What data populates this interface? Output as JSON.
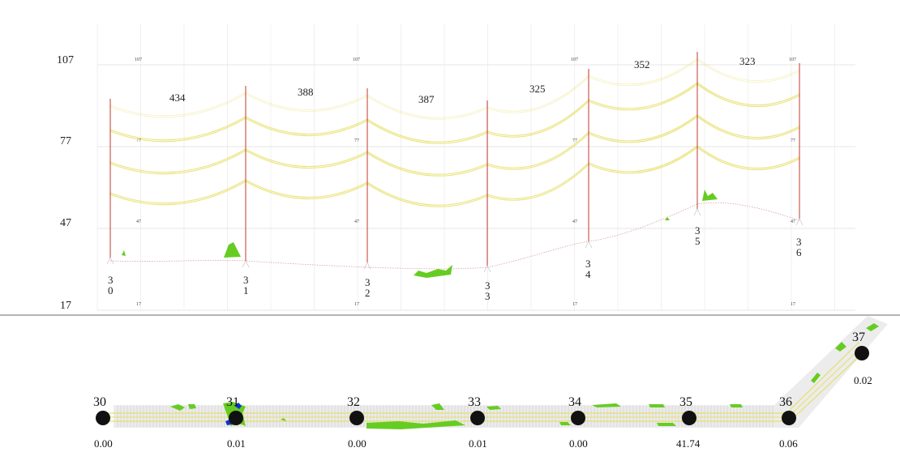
{
  "profile": {
    "y_axis": [
      "107",
      "77",
      "47",
      "17"
    ],
    "span_lengths": [
      "434",
      "388",
      "387",
      "325",
      "352",
      "323"
    ],
    "poles": [
      {
        "digits": [
          "3",
          "0"
        ]
      },
      {
        "digits": [
          "3",
          "1"
        ]
      },
      {
        "digits": [
          "3",
          "2"
        ]
      },
      {
        "digits": [
          "3",
          "3"
        ]
      },
      {
        "digits": [
          "3",
          "4"
        ]
      },
      {
        "digits": [
          "3",
          "5"
        ]
      },
      {
        "digits": [
          "3",
          "6"
        ]
      }
    ]
  },
  "plan": {
    "towers": [
      {
        "id": "30",
        "value": "0.00"
      },
      {
        "id": "31",
        "value": "0.01"
      },
      {
        "id": "32",
        "value": "0.00"
      },
      {
        "id": "33",
        "value": "0.01"
      },
      {
        "id": "34",
        "value": "0.00"
      },
      {
        "id": "35",
        "value": "41.74"
      },
      {
        "id": "36",
        "value": "0.06"
      },
      {
        "id": "37",
        "value": "0.02"
      }
    ]
  },
  "colors": {
    "pole": "#c0392b",
    "conductor": "#e8e070",
    "vegetation": "#66cc22",
    "alert": "#1133cc",
    "grid": "#e6e6e6",
    "divider": "#888888"
  }
}
